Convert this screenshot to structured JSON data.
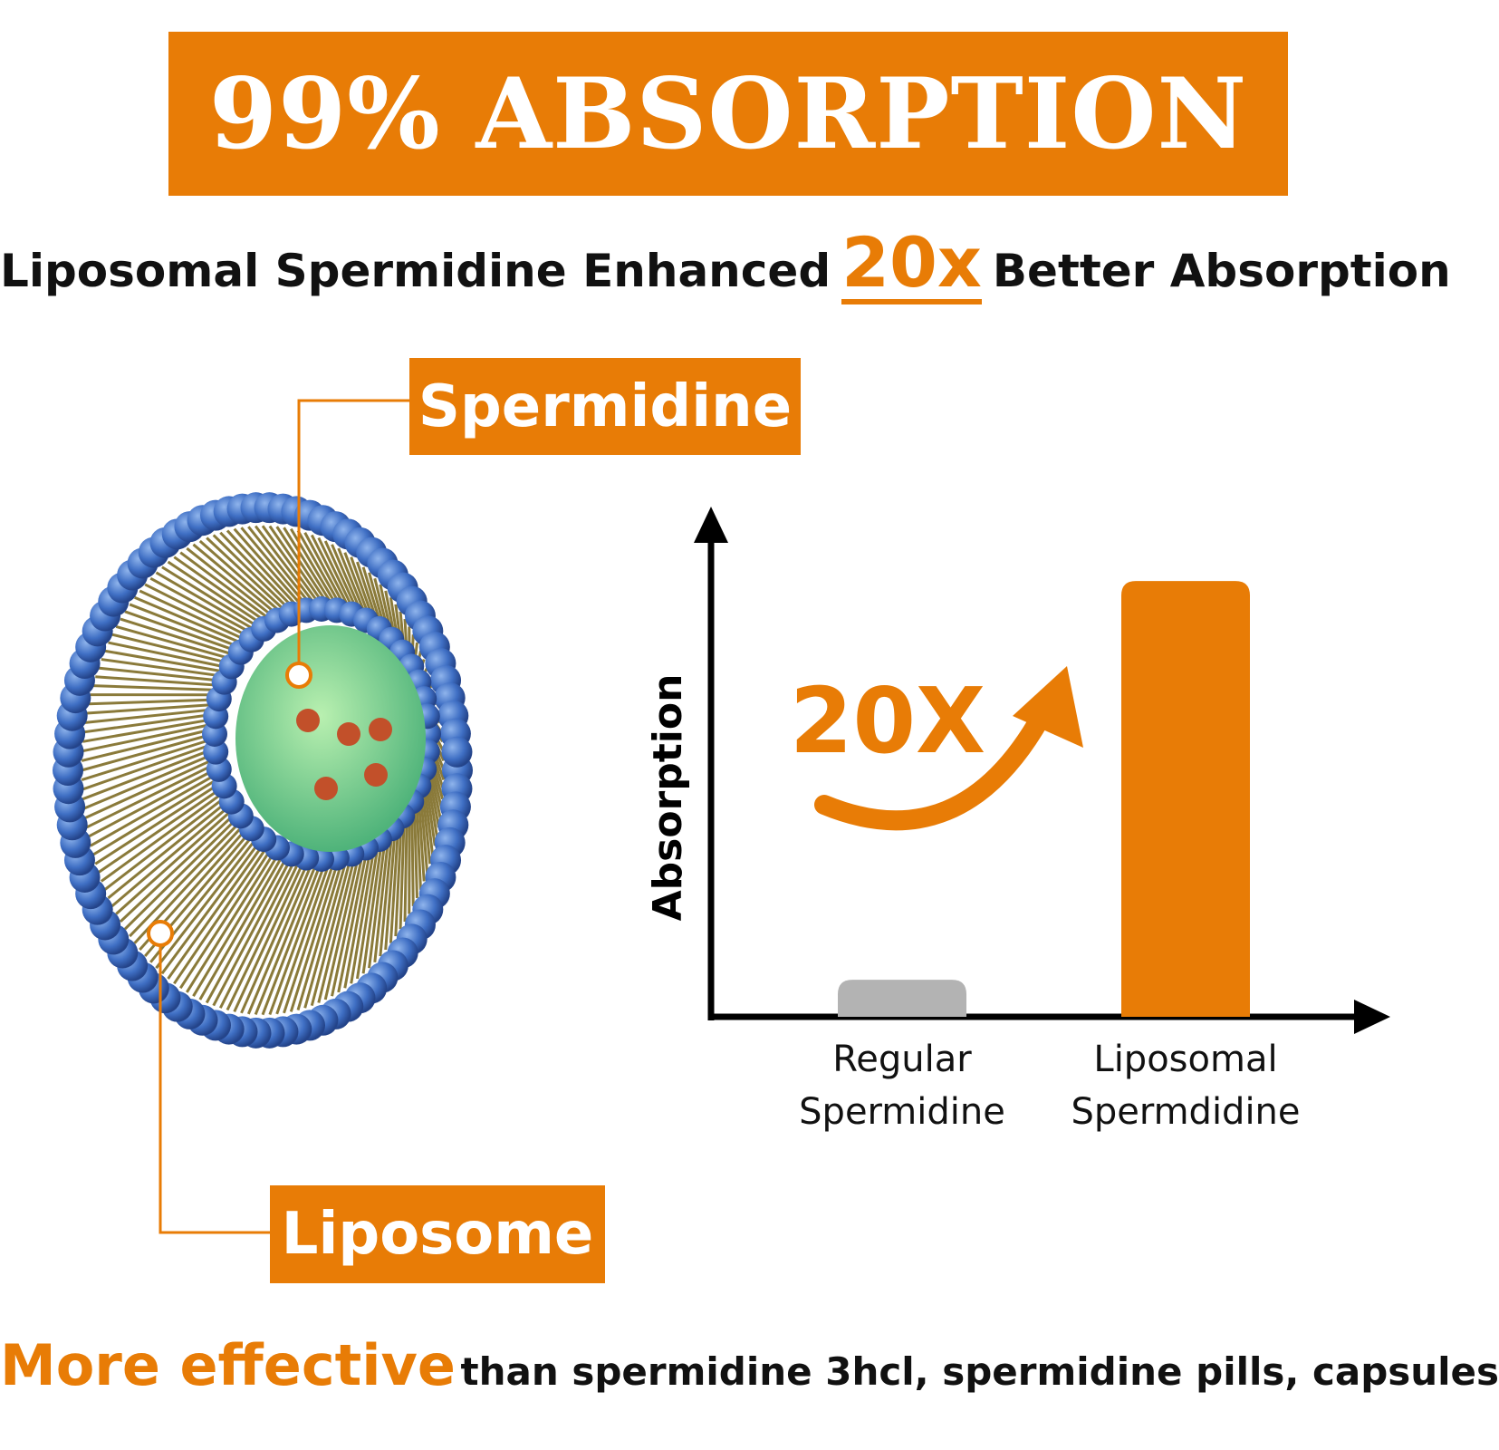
{
  "banner": {
    "title": "99% ABSORPTION"
  },
  "headline": {
    "before": "Liposomal Spermidine Enhanced",
    "highlight": "20x",
    "after": "Better Absorption"
  },
  "callouts": {
    "core": "Spermidine",
    "shell": "Liposome"
  },
  "chart_data": {
    "type": "bar",
    "y_label": "Absorption",
    "annotation": "20X",
    "categories": [
      "Regular Spermidine",
      "Liposomal Spermdidine"
    ],
    "values": [
      1.7,
      20
    ],
    "colors": [
      "#b3b3b3",
      "#e87c06"
    ],
    "ylim": [
      0,
      23
    ]
  },
  "footer": {
    "highlight": "More effective",
    "rest": "than spermidine 3hcl, spermidine pills, capsules"
  }
}
